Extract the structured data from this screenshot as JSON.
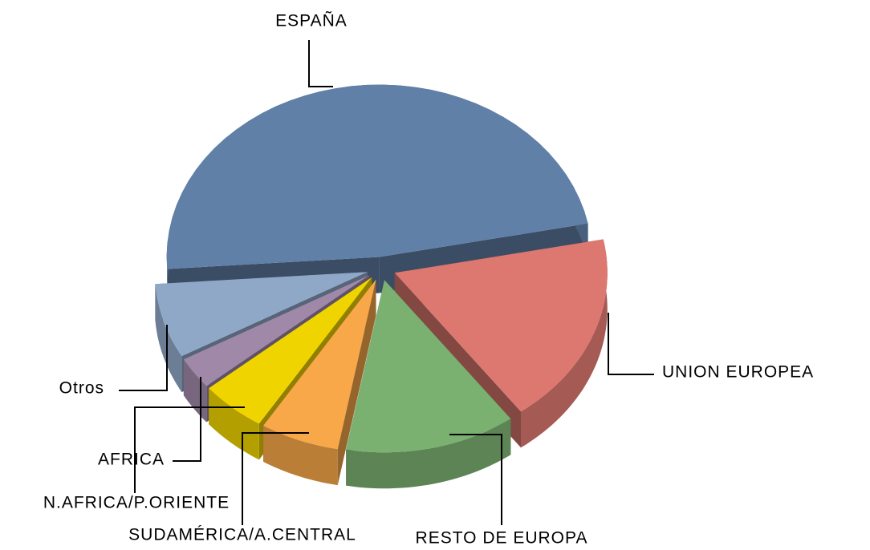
{
  "chart_data": {
    "type": "pie3d",
    "categories": [
      "ESPAÑA",
      "UNION EUROPEA",
      "RESTO DE EUROPA",
      "SUDAMÉRICA/A.CENTRAL",
      "N.AFRICA/P.ORIENTE",
      "AFRICA",
      "Otros"
    ],
    "values": [
      48,
      18,
      13,
      6,
      5,
      3,
      7
    ],
    "colors": [
      "#6080a8",
      "#dc7870",
      "#7ab070",
      "#f8a848",
      "#f0d400",
      "#a088a8",
      "#90a8c8"
    ]
  }
}
